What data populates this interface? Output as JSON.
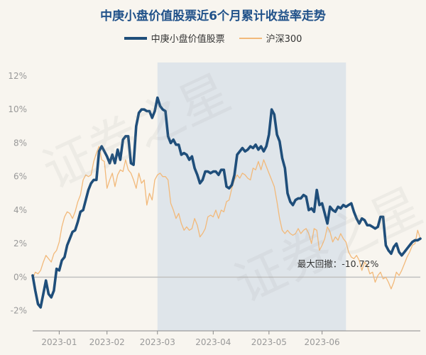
{
  "title": "中庚小盘价值股票近6个月累计收益率走势",
  "watermark": "证券之星",
  "colors": {
    "main": "#1f4e7a",
    "benchmark": "#f2b97a",
    "shade": "#dfe5ea",
    "zero_line": "#c0c0c0",
    "axis_text": "#999999",
    "annotation": "#333333"
  },
  "chart_data": {
    "type": "line",
    "title": "中庚小盘价值股票近6个月累计收益率走势",
    "ylabel": "",
    "ylim": [
      -3.2,
      12.8
    ],
    "y_ticks": [
      -2,
      0,
      2,
      4,
      6,
      8,
      10,
      12
    ],
    "y_tick_labels": [
      "-2%",
      "0%",
      "2%",
      "4%",
      "6%",
      "8%",
      "10%",
      "12%"
    ],
    "x_tick_labels": [
      "2023-01",
      "2023-02",
      "2023-03",
      "2023-04",
      "2023-05",
      "2023-06"
    ],
    "x_tick_index": [
      10,
      28,
      47,
      68,
      89,
      109
    ],
    "legend_position": "top-center",
    "grid": false,
    "drawdown_shade_index": [
      47,
      118
    ],
    "annotation": {
      "label": "最大回撤：-10.72%",
      "index": 115,
      "y": 0.6
    },
    "series": [
      {
        "name": "中庚小盘价值股票",
        "values": [
          0.1,
          -0.8,
          -1.6,
          -1.8,
          -1.0,
          -0.2,
          -1.0,
          -1.2,
          -0.8,
          0.5,
          0.4,
          1.0,
          1.2,
          1.9,
          2.3,
          2.7,
          2.8,
          3.3,
          3.9,
          4.0,
          4.6,
          5.2,
          5.6,
          5.8,
          5.8,
          7.5,
          7.8,
          7.5,
          7.2,
          6.8,
          7.3,
          6.8,
          7.6,
          7.0,
          8.2,
          8.4,
          8.4,
          6.8,
          6.7,
          9.0,
          9.8,
          10.0,
          10.0,
          9.9,
          9.9,
          9.5,
          9.9,
          10.7,
          10.2,
          10.0,
          9.9,
          8.4,
          8.0,
          8.2,
          7.9,
          7.9,
          7.3,
          7.4,
          7.3,
          7.0,
          7.2,
          6.5,
          6.1,
          5.6,
          5.8,
          6.3,
          6.3,
          6.2,
          6.3,
          6.3,
          6.1,
          6.4,
          6.4,
          5.4,
          5.3,
          5.5,
          6.1,
          7.3,
          7.5,
          7.7,
          7.5,
          7.6,
          7.8,
          7.7,
          7.9,
          7.6,
          7.8,
          7.5,
          7.8,
          8.5,
          10.0,
          9.7,
          8.5,
          8.1,
          7.1,
          6.5,
          5.0,
          4.5,
          4.3,
          4.6,
          4.7,
          4.7,
          4.9,
          4.8,
          4.0,
          4.1,
          3.9,
          5.2,
          4.3,
          4.4,
          3.8,
          3.2,
          4.2,
          4.0,
          3.9,
          4.2,
          4.1,
          4.3,
          4.2,
          4.3,
          4.4,
          3.9,
          3.5,
          3.2,
          3.5,
          3.4,
          3.1,
          3.1,
          3.0,
          2.9,
          3.0,
          3.6,
          3.6,
          1.9,
          1.6,
          1.4,
          1.8,
          2.0,
          1.5,
          1.3,
          1.5,
          1.7,
          1.9,
          2.1,
          2.2,
          2.2,
          2.3
        ]
      },
      {
        "name": "沪深300",
        "values": [
          -0.1,
          0.3,
          0.2,
          0.4,
          0.9,
          1.3,
          1.1,
          0.9,
          1.4,
          1.6,
          2.1,
          3.0,
          3.6,
          3.9,
          3.8,
          3.5,
          3.9,
          4.5,
          4.9,
          5.8,
          6.1,
          6.0,
          6.1,
          6.9,
          7.4,
          7.8,
          7.0,
          6.9,
          5.3,
          5.8,
          6.2,
          5.4,
          6.1,
          6.4,
          6.3,
          7.0,
          6.4,
          6.2,
          5.8,
          5.3,
          6.2,
          5.6,
          5.8,
          4.3,
          5.0,
          4.6,
          5.8,
          6.1,
          6.2,
          6.0,
          6.0,
          5.8,
          4.4,
          4.0,
          3.5,
          3.8,
          3.2,
          2.8,
          3.0,
          2.8,
          2.9,
          3.5,
          3.1,
          2.4,
          2.6,
          2.9,
          3.6,
          3.7,
          3.6,
          4.0,
          3.5,
          4.0,
          3.9,
          4.5,
          4.6,
          5.3,
          5.8,
          6.1,
          5.9,
          6.2,
          6.1,
          5.9,
          5.8,
          6.5,
          6.4,
          6.9,
          6.4,
          7.0,
          6.6,
          6.2,
          5.8,
          5.4,
          4.5,
          3.5,
          2.8,
          2.6,
          2.8,
          2.6,
          2.5,
          2.6,
          2.9,
          2.6,
          2.8,
          2.9,
          2.6,
          2.0,
          2.9,
          2.8,
          1.6,
          1.9,
          2.3,
          3.0,
          2.7,
          2.1,
          2.4,
          2.2,
          2.6,
          2.3,
          2.1,
          1.5,
          1.2,
          1.1,
          1.3,
          1.0,
          0.4,
          0.9,
          0.7,
          0.2,
          0.3,
          -0.3,
          0.1,
          0.3,
          -0.1,
          0.0,
          -0.3,
          -0.7,
          -0.3,
          0.3,
          0.1,
          0.4,
          0.8,
          1.2,
          1.5,
          1.9,
          2.0,
          2.8,
          2.3
        ]
      }
    ]
  }
}
